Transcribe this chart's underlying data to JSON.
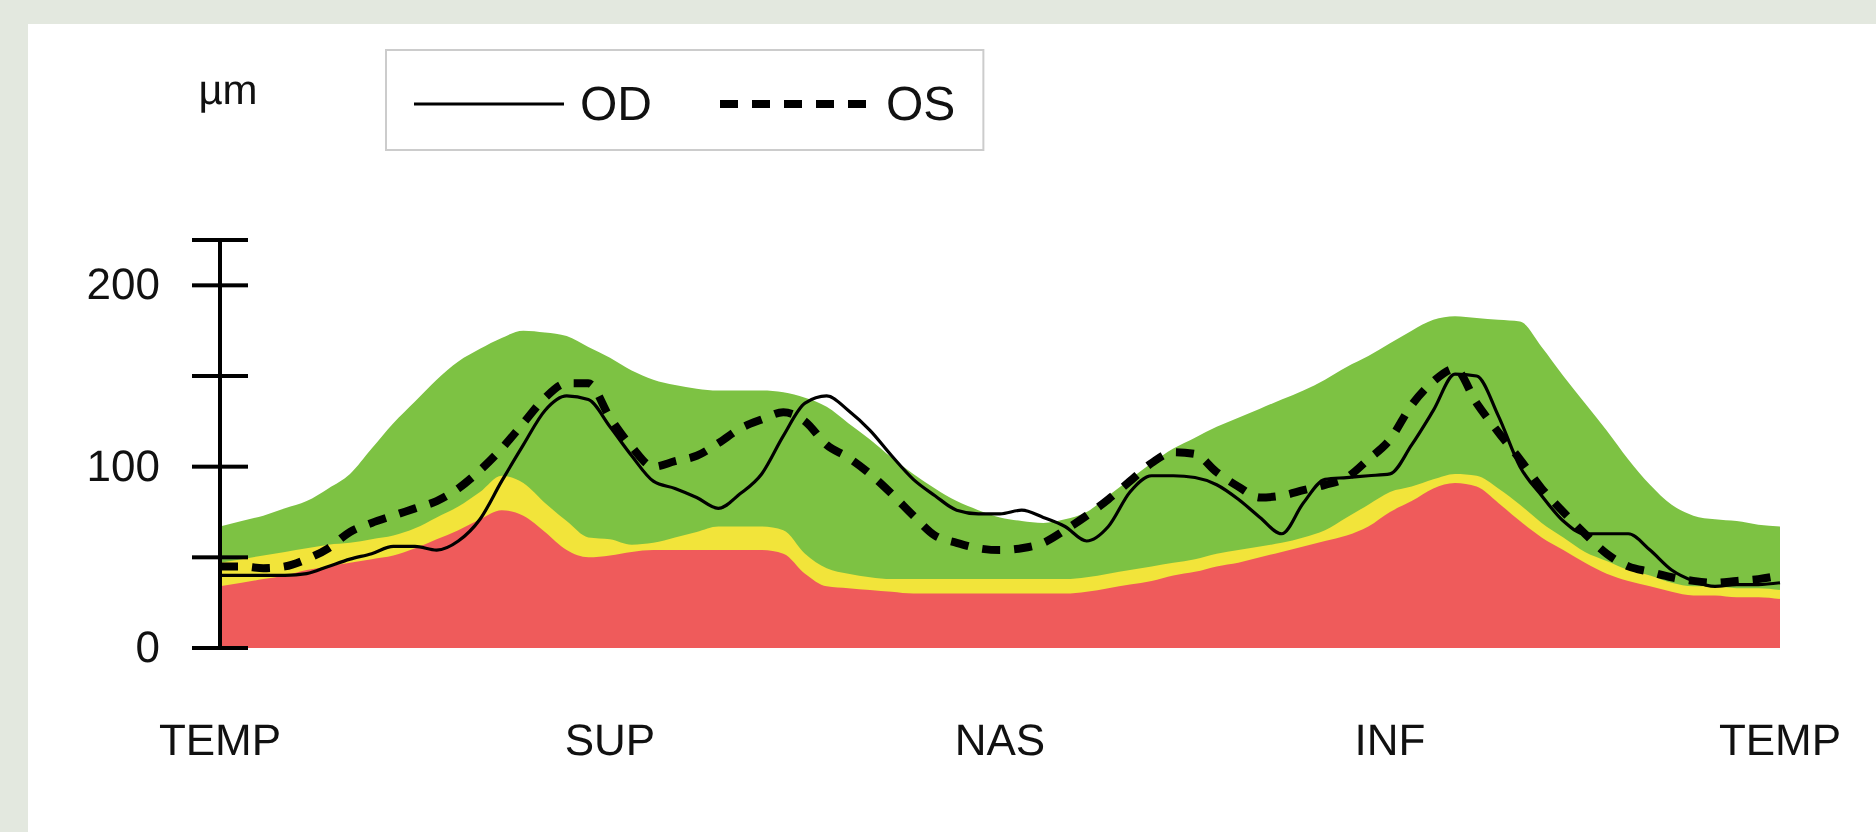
{
  "chart_data": {
    "type": "line",
    "ylabel": "µm",
    "ylim": [
      0,
      225
    ],
    "categories": [
      "TEMP",
      null,
      null,
      null,
      null,
      null,
      null,
      null,
      null,
      null,
      null,
      null,
      null,
      null,
      null,
      null,
      null,
      null,
      "SUP",
      null,
      null,
      null,
      null,
      null,
      null,
      null,
      null,
      null,
      null,
      null,
      null,
      null,
      null,
      null,
      null,
      null,
      "NAS",
      null,
      null,
      null,
      null,
      null,
      null,
      null,
      null,
      null,
      null,
      null,
      null,
      null,
      null,
      null,
      null,
      null,
      "INF",
      null,
      null,
      null,
      null,
      null,
      null,
      null,
      null,
      null,
      null,
      null,
      null,
      null,
      null,
      null,
      null,
      null,
      "TEMP"
    ],
    "yticks": [
      0,
      {
        "value": 50,
        "label": null
      },
      100,
      {
        "value": 150,
        "label": null
      },
      200,
      {
        "value": 225,
        "label": null
      }
    ],
    "legend": "top",
    "series": [
      {
        "type": "area",
        "color": "#7dc243",
        "values": [
          67,
          70,
          73,
          77,
          81,
          88,
          96,
          110,
          124,
          136,
          148,
          158,
          165,
          171,
          175,
          174,
          172,
          166,
          160,
          153,
          148,
          145,
          143,
          142,
          142,
          142,
          141,
          138,
          133,
          124,
          115,
          105,
          96,
          88,
          81,
          76,
          72,
          70,
          69,
          71,
          75,
          84,
          93,
          102,
          110,
          116,
          122,
          127,
          132,
          137,
          142,
          148,
          155,
          161,
          168,
          175,
          181,
          183,
          182,
          181,
          180,
          166,
          150,
          135,
          120,
          104,
          90,
          79,
          73,
          71,
          70,
          68,
          67
        ]
      },
      {
        "type": "area",
        "color": "#f2e43a",
        "values": [
          47,
          49,
          51,
          53,
          55,
          57,
          58,
          60,
          62,
          66,
          72,
          78,
          86,
          95,
          91,
          80,
          70,
          61,
          60,
          57,
          58,
          61,
          64,
          67,
          67,
          67,
          65,
          52,
          44,
          41,
          39,
          38,
          38,
          38,
          38,
          38,
          38,
          38,
          38,
          38,
          39,
          41,
          43,
          45,
          47,
          49,
          52,
          54,
          56,
          58,
          61,
          65,
          72,
          79,
          86,
          89,
          93,
          96,
          95,
          88,
          79,
          69,
          61,
          53,
          48,
          43,
          40,
          36,
          34,
          34,
          33,
          33,
          32
        ]
      },
      {
        "type": "area",
        "color": "#ef5b5b",
        "values": [
          34,
          36,
          38,
          40,
          43,
          45,
          47,
          49,
          51,
          55,
          60,
          65,
          71,
          76,
          73,
          64,
          54,
          50,
          51,
          53,
          54,
          54,
          54,
          54,
          54,
          54,
          52,
          41,
          34,
          33,
          32,
          31,
          30,
          30,
          30,
          30,
          30,
          30,
          30,
          30,
          31,
          33,
          35,
          37,
          40,
          42,
          45,
          47,
          50,
          53,
          56,
          59,
          62,
          67,
          75,
          81,
          88,
          91,
          89,
          80,
          70,
          61,
          54,
          47,
          41,
          37,
          34,
          31,
          29,
          29,
          28,
          28,
          27
        ]
      },
      {
        "name": "OD",
        "color": "#000000",
        "line_style": "solid",
        "values": [
          40,
          40,
          40,
          40,
          41,
          45,
          49,
          52,
          56,
          56,
          54,
          59,
          71,
          92,
          112,
          131,
          139,
          137,
          122,
          106,
          92,
          88,
          83,
          77,
          85,
          96,
          117,
          135,
          139,
          131,
          120,
          106,
          93,
          84,
          76,
          74,
          74,
          76,
          72,
          67,
          59,
          67,
          86,
          95,
          95,
          94,
          90,
          82,
          72,
          63,
          80,
          93,
          94,
          95,
          96,
          112,
          131,
          151,
          150,
          128,
          100,
          84,
          70,
          63,
          63,
          63,
          54,
          43,
          37,
          34,
          35,
          35,
          36
        ]
      },
      {
        "name": "OS",
        "color": "#000000",
        "line_style": "dashed",
        "values": [
          45,
          45,
          44,
          45,
          49,
          55,
          64,
          69,
          73,
          77,
          81,
          88,
          98,
          110,
          124,
          138,
          146,
          146,
          127,
          111,
          100,
          103,
          106,
          113,
          121,
          126,
          130,
          125,
          112,
          105,
          96,
          85,
          73,
          62,
          58,
          55,
          54,
          55,
          58,
          65,
          73,
          82,
          92,
          102,
          108,
          107,
          97,
          89,
          83,
          84,
          87,
          90,
          94,
          104,
          115,
          134,
          147,
          154,
          135,
          119,
          104,
          88,
          75,
          63,
          52,
          45,
          42,
          39,
          37,
          36,
          37,
          38,
          40
        ]
      }
    ]
  }
}
